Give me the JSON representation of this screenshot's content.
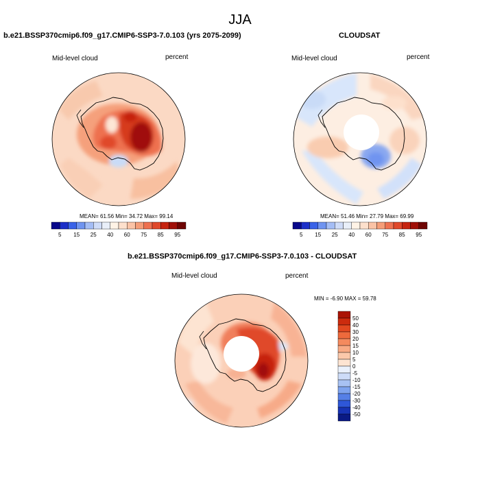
{
  "page": {
    "title": "JJA"
  },
  "panels": [
    {
      "id": "model",
      "title": "b.e21.BSSP370cmip6.f09_g17.CMIP6-SSP3-7.0.103 (yrs 2075-2099)",
      "left_label": "Mid-level cloud",
      "right_label": "percent",
      "stats": "MEAN=  61.56  Min=  34.72  Max=  99.14"
    },
    {
      "id": "obs",
      "title": "CLOUDSAT",
      "left_label": "Mid-level cloud",
      "right_label": "percent",
      "stats": "MEAN=  51.46  Min=  27.79  Max=  69.99"
    },
    {
      "id": "diff",
      "title": "b.e21.BSSP370cmip6.f09_g17.CMIP6-SSP3-7.0.103 - CLOUDSAT",
      "left_label": "Mid-level cloud",
      "right_label": "percent",
      "stats": "MIN =  -6.90 MAX =  59.78"
    }
  ],
  "colorbars": {
    "horizontal": {
      "tick_labels": [
        "5",
        "15",
        "25",
        "40",
        "60",
        "75",
        "85",
        "95"
      ],
      "colors": [
        "#08088a",
        "#1c2fc8",
        "#3a63e8",
        "#6f94f0",
        "#a4bdf5",
        "#cfdcf8",
        "#e9eff9",
        "#fff3e6",
        "#fde0cc",
        "#fbc3a6",
        "#f59d78",
        "#ee7150",
        "#e0482a",
        "#c62410",
        "#a01008",
        "#6e0503"
      ]
    },
    "vertical": {
      "tick_labels": [
        "50",
        "40",
        "30",
        "20",
        "15",
        "10",
        "5",
        "0",
        "-5",
        "-10",
        "-15",
        "-20",
        "-30",
        "-40",
        "-50"
      ],
      "colors": [
        "#aa1405",
        "#cc2b0e",
        "#e24820",
        "#ee6a3c",
        "#f48a5e",
        "#f8aa84",
        "#fbc8aa",
        "#fde4d2",
        "#eaf1fc",
        "#cddcf8",
        "#a8c2f3",
        "#7ea3ee",
        "#557fe6",
        "#2e57d8",
        "#1733b4",
        "#0a1a84"
      ]
    }
  },
  "legend": {
    "colors": {
      "deep_red": "#a01008",
      "light_orange": "#fbd9c4",
      "pale": "#fdeee2",
      "light_blue": "#d8e6fb",
      "blue": "#8aa8f0",
      "land_outline": "#000000"
    }
  }
}
